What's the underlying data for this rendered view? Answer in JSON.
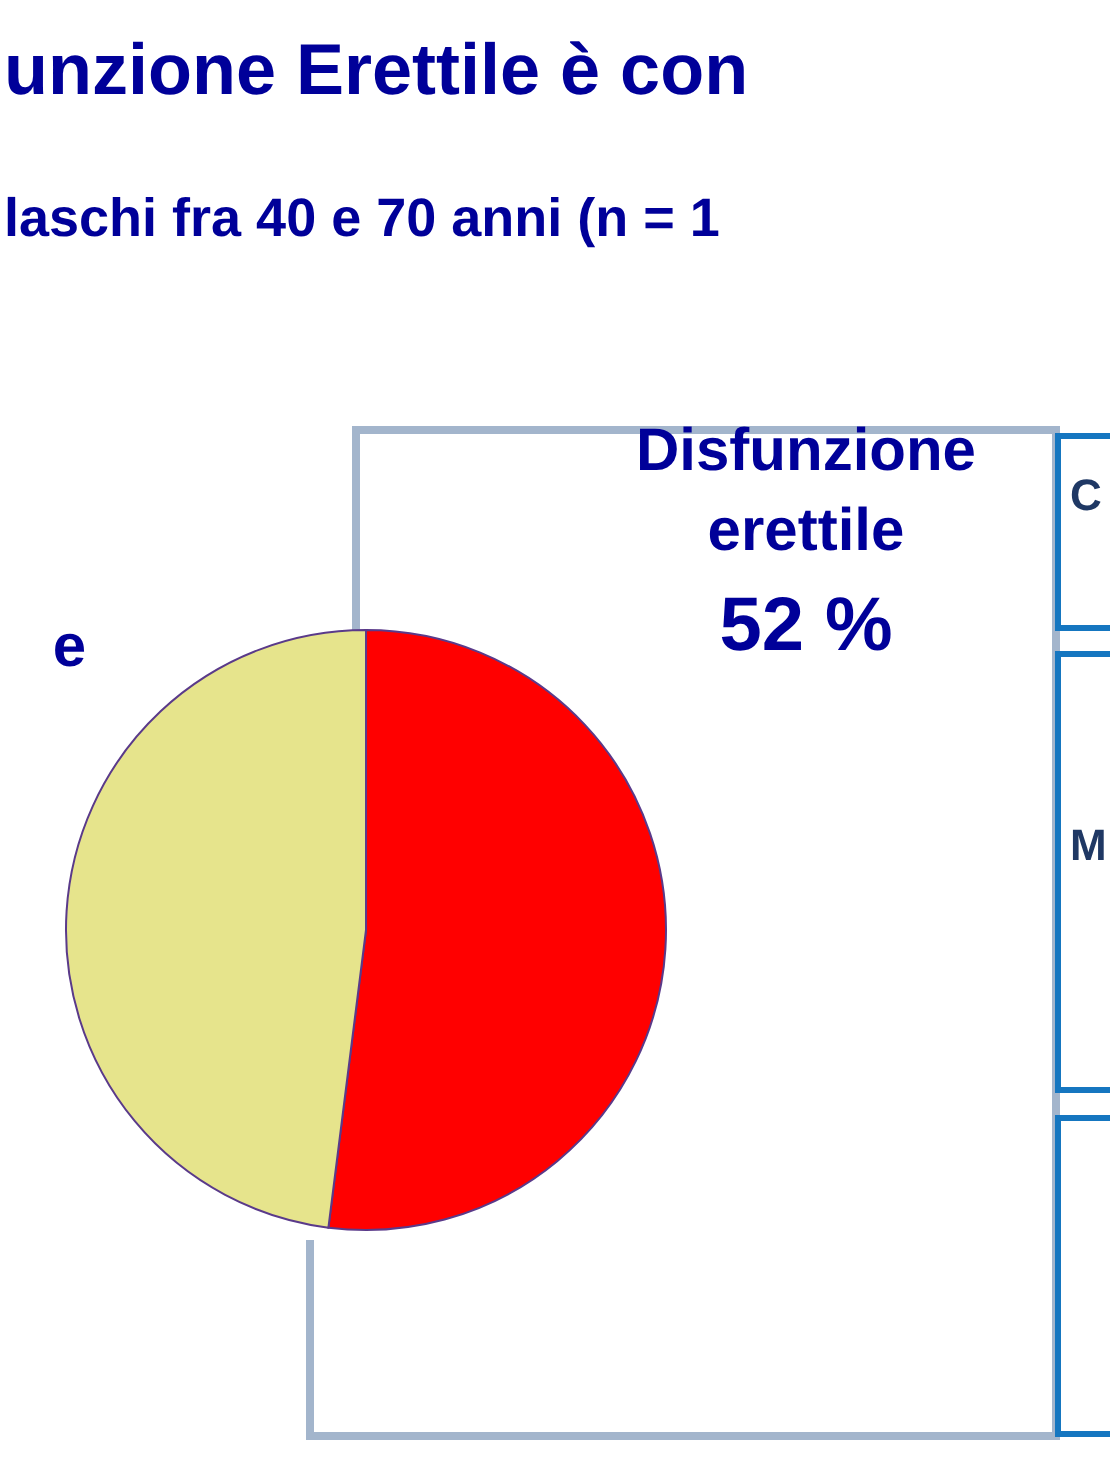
{
  "chart_data": {
    "type": "pie",
    "title": "unzione Erettile è con",
    "subtitle": "laschi fra 40 e 70 anni (n = 1",
    "categories": [
      "Disfunzione erettile",
      "e"
    ],
    "values": [
      52,
      48
    ],
    "colors": [
      "#ff0000",
      "#e6e48c"
    ],
    "value_labels": [
      "52 %",
      null
    ],
    "annotations": [
      "C",
      "M"
    ],
    "legend": false
  }
}
